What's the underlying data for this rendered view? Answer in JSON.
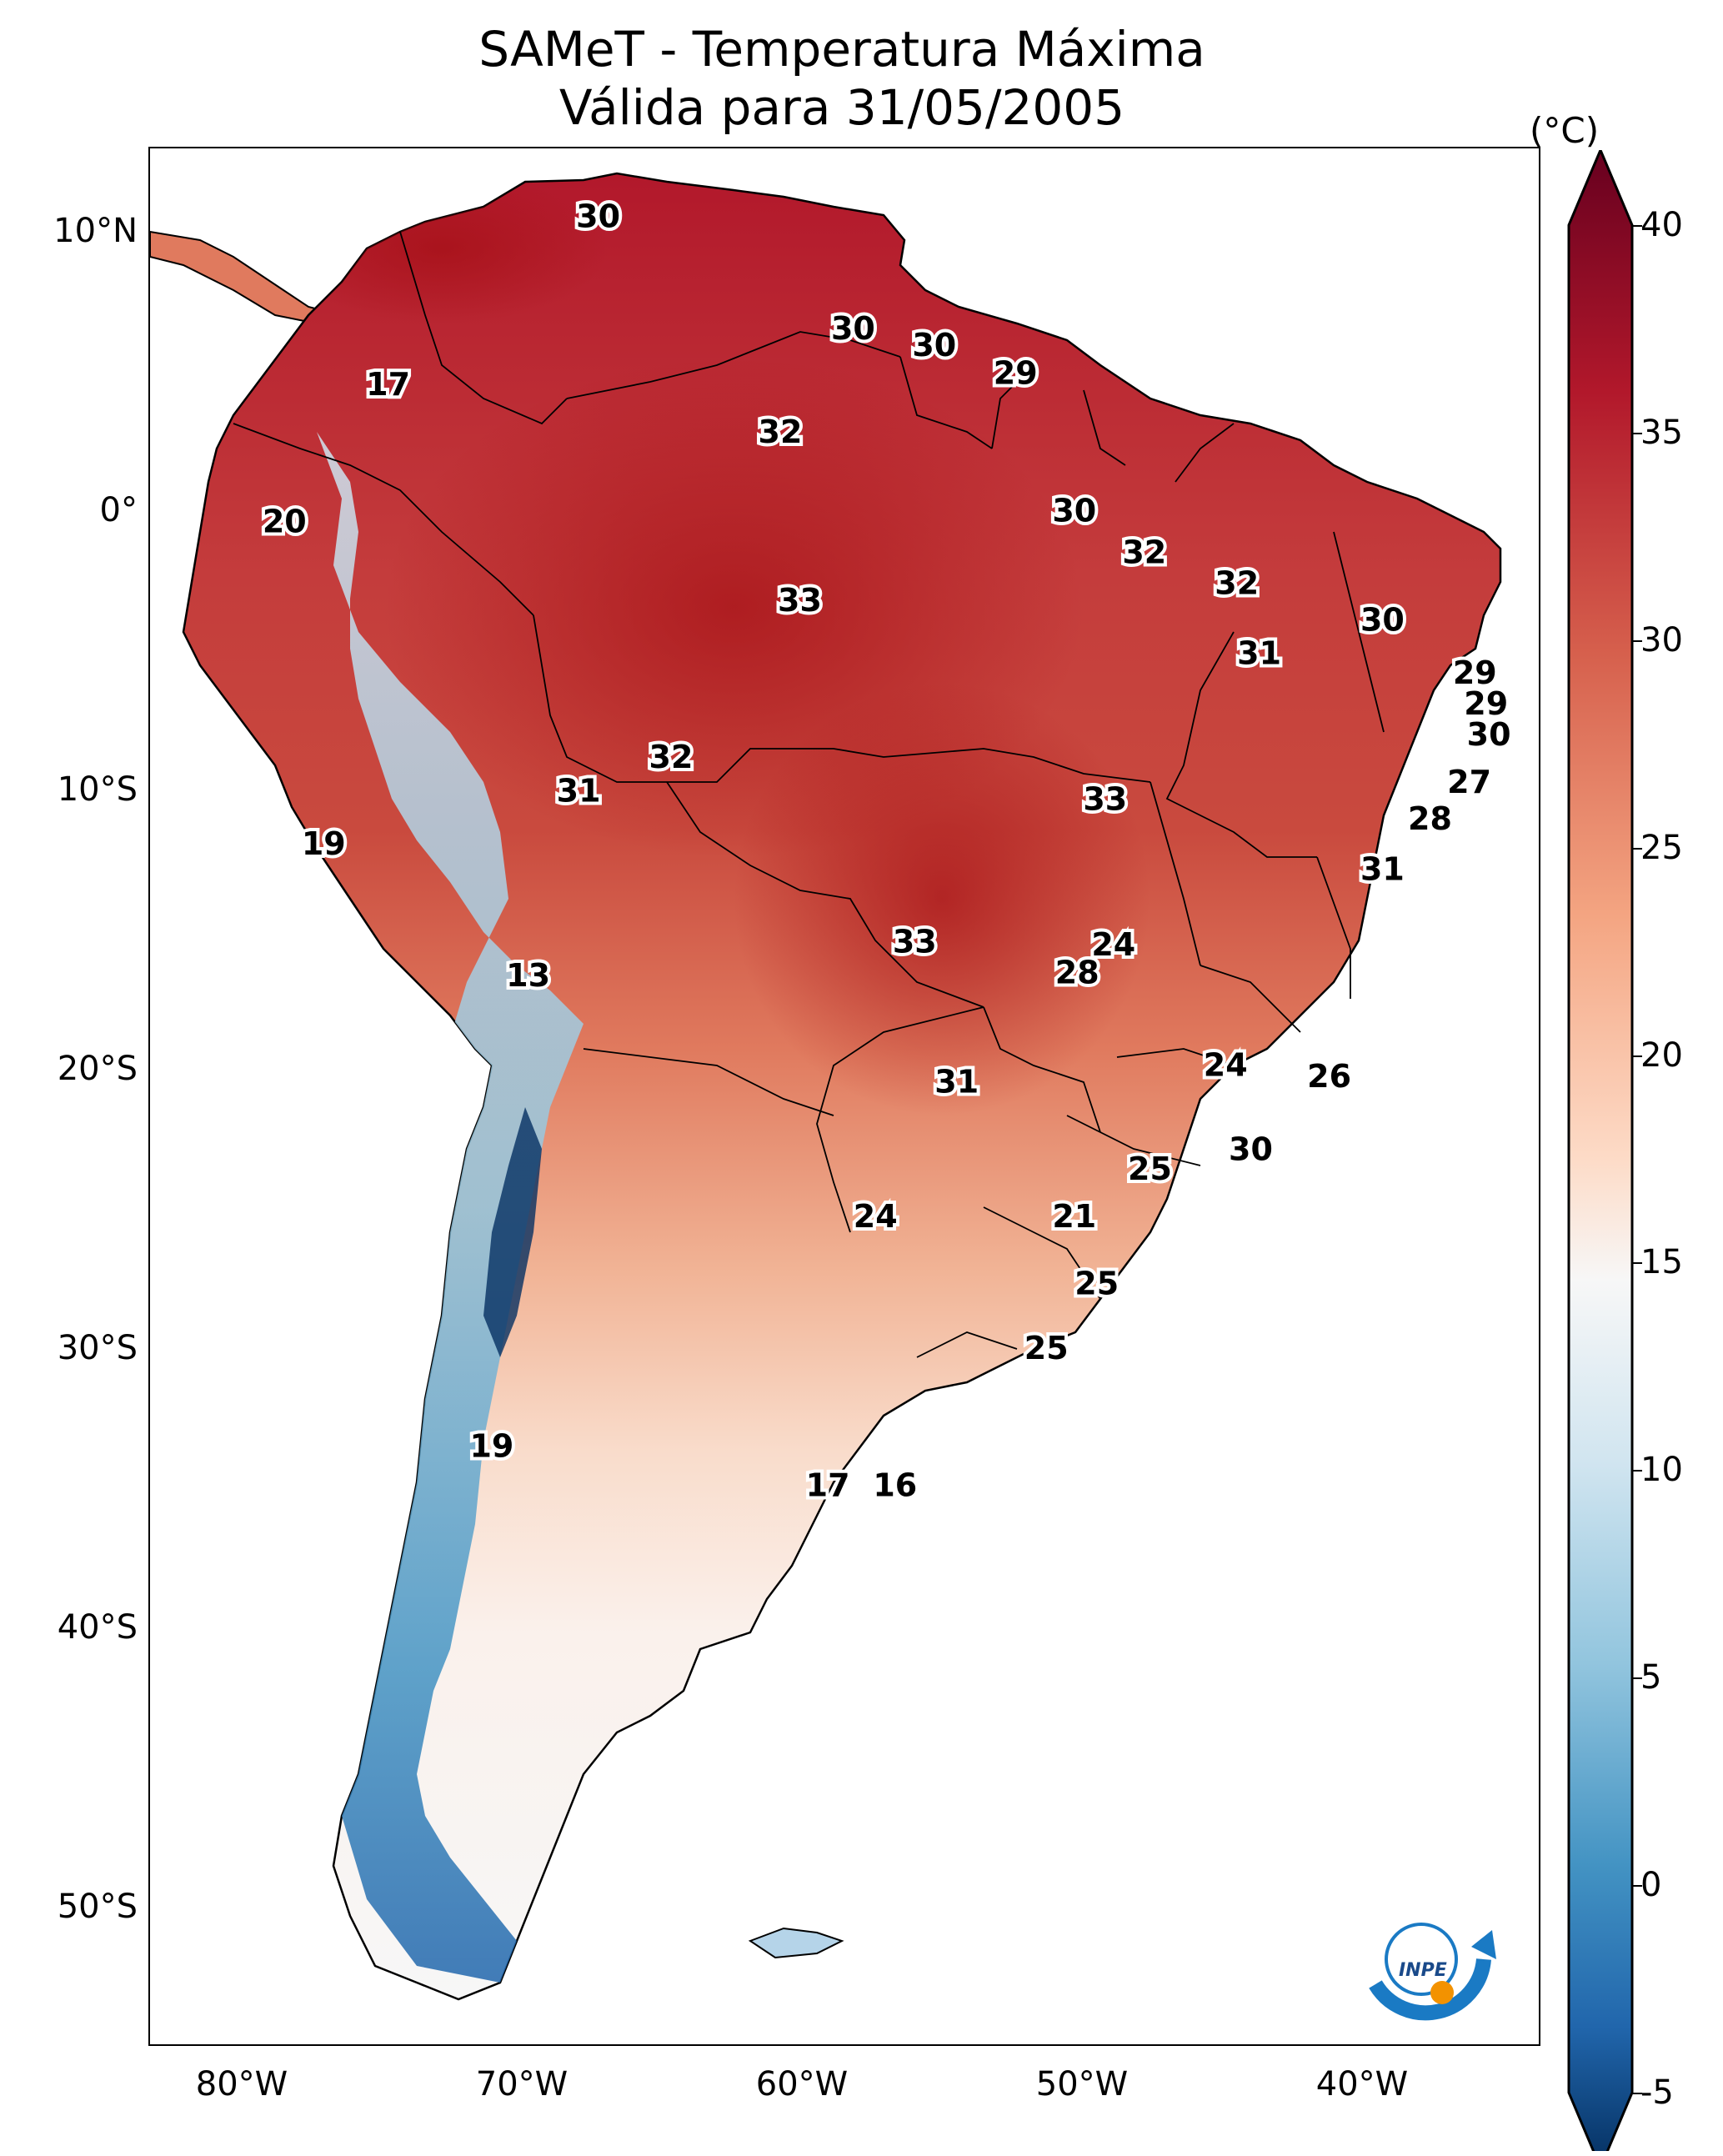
{
  "title": {
    "line1": "SAMeT - Temperatura Máxima",
    "line2": "Válida para 31/05/2005"
  },
  "axes": {
    "lat_ticks": [
      "10°N",
      "0°",
      "10°S",
      "20°S",
      "30°S",
      "40°S",
      "50°S"
    ],
    "lon_ticks": [
      "80°W",
      "70°W",
      "60°W",
      "50°W",
      "40°W"
    ]
  },
  "colorbar": {
    "unit": "(°C)",
    "ticks": [
      "40",
      "35",
      "30",
      "25",
      "20",
      "15",
      "10",
      "5",
      "0",
      "-5"
    ],
    "min": -5,
    "max": 40,
    "colors": {
      "max": "#67001f",
      "high": "#d6604d",
      "mid_high": "#f4a582",
      "neutral": "#f7f7f7",
      "mid_low": "#92c5de",
      "low": "#2166ac",
      "min": "#053061"
    }
  },
  "temperature_labels": [
    {
      "text": "30",
      "lon": -67.0,
      "lat": 10.5
    },
    {
      "text": "17",
      "lon": -74.5,
      "lat": 4.5
    },
    {
      "text": "30",
      "lon": -57.9,
      "lat": 6.5
    },
    {
      "text": "30",
      "lon": -55.0,
      "lat": 5.9
    },
    {
      "text": "29",
      "lon": -52.1,
      "lat": 4.9
    },
    {
      "text": "32",
      "lon": -60.5,
      "lat": 2.8
    },
    {
      "text": "20",
      "lon": -78.2,
      "lat": -0.4
    },
    {
      "text": "30",
      "lon": -50.0,
      "lat": 0.0
    },
    {
      "text": "32",
      "lon": -47.5,
      "lat": -1.5
    },
    {
      "text": "33",
      "lon": -59.8,
      "lat": -3.2
    },
    {
      "text": "32",
      "lon": -44.2,
      "lat": -2.6
    },
    {
      "text": "30",
      "lon": -39.0,
      "lat": -3.9
    },
    {
      "text": "31",
      "lon": -43.4,
      "lat": -5.1
    },
    {
      "text": "29",
      "lon": -35.7,
      "lat": -5.8
    },
    {
      "text": "29",
      "lon": -35.3,
      "lat": -6.9
    },
    {
      "text": "30",
      "lon": -35.2,
      "lat": -8.0
    },
    {
      "text": "32",
      "lon": -64.4,
      "lat": -8.8
    },
    {
      "text": "31",
      "lon": -67.7,
      "lat": -10.0
    },
    {
      "text": "33",
      "lon": -48.9,
      "lat": -10.3
    },
    {
      "text": "27",
      "lon": -35.9,
      "lat": -9.7
    },
    {
      "text": "28",
      "lon": -37.3,
      "lat": -11.0
    },
    {
      "text": "19",
      "lon": -76.8,
      "lat": -11.9
    },
    {
      "text": "31",
      "lon": -39.0,
      "lat": -12.8
    },
    {
      "text": "24",
      "lon": -48.6,
      "lat": -15.5
    },
    {
      "text": "33",
      "lon": -55.7,
      "lat": -15.4
    },
    {
      "text": "28",
      "lon": -49.9,
      "lat": -16.5
    },
    {
      "text": "13",
      "lon": -69.5,
      "lat": -16.6
    },
    {
      "text": "24",
      "lon": -44.6,
      "lat": -19.8
    },
    {
      "text": "26",
      "lon": -40.9,
      "lat": -20.2
    },
    {
      "text": "31",
      "lon": -54.2,
      "lat": -20.4
    },
    {
      "text": "30",
      "lon": -43.7,
      "lat": -22.8
    },
    {
      "text": "25",
      "lon": -47.3,
      "lat": -23.5
    },
    {
      "text": "24",
      "lon": -57.1,
      "lat": -25.2
    },
    {
      "text": "21",
      "lon": -50.0,
      "lat": -25.2
    },
    {
      "text": "25",
      "lon": -49.2,
      "lat": -27.6
    },
    {
      "text": "25",
      "lon": -51.0,
      "lat": -29.9
    },
    {
      "text": "19",
      "lon": -70.8,
      "lat": -33.4
    },
    {
      "text": "17",
      "lon": -58.8,
      "lat": -34.8
    },
    {
      "text": "16",
      "lon": -56.4,
      "lat": -34.8
    }
  ],
  "logo": {
    "text": "INPE"
  }
}
